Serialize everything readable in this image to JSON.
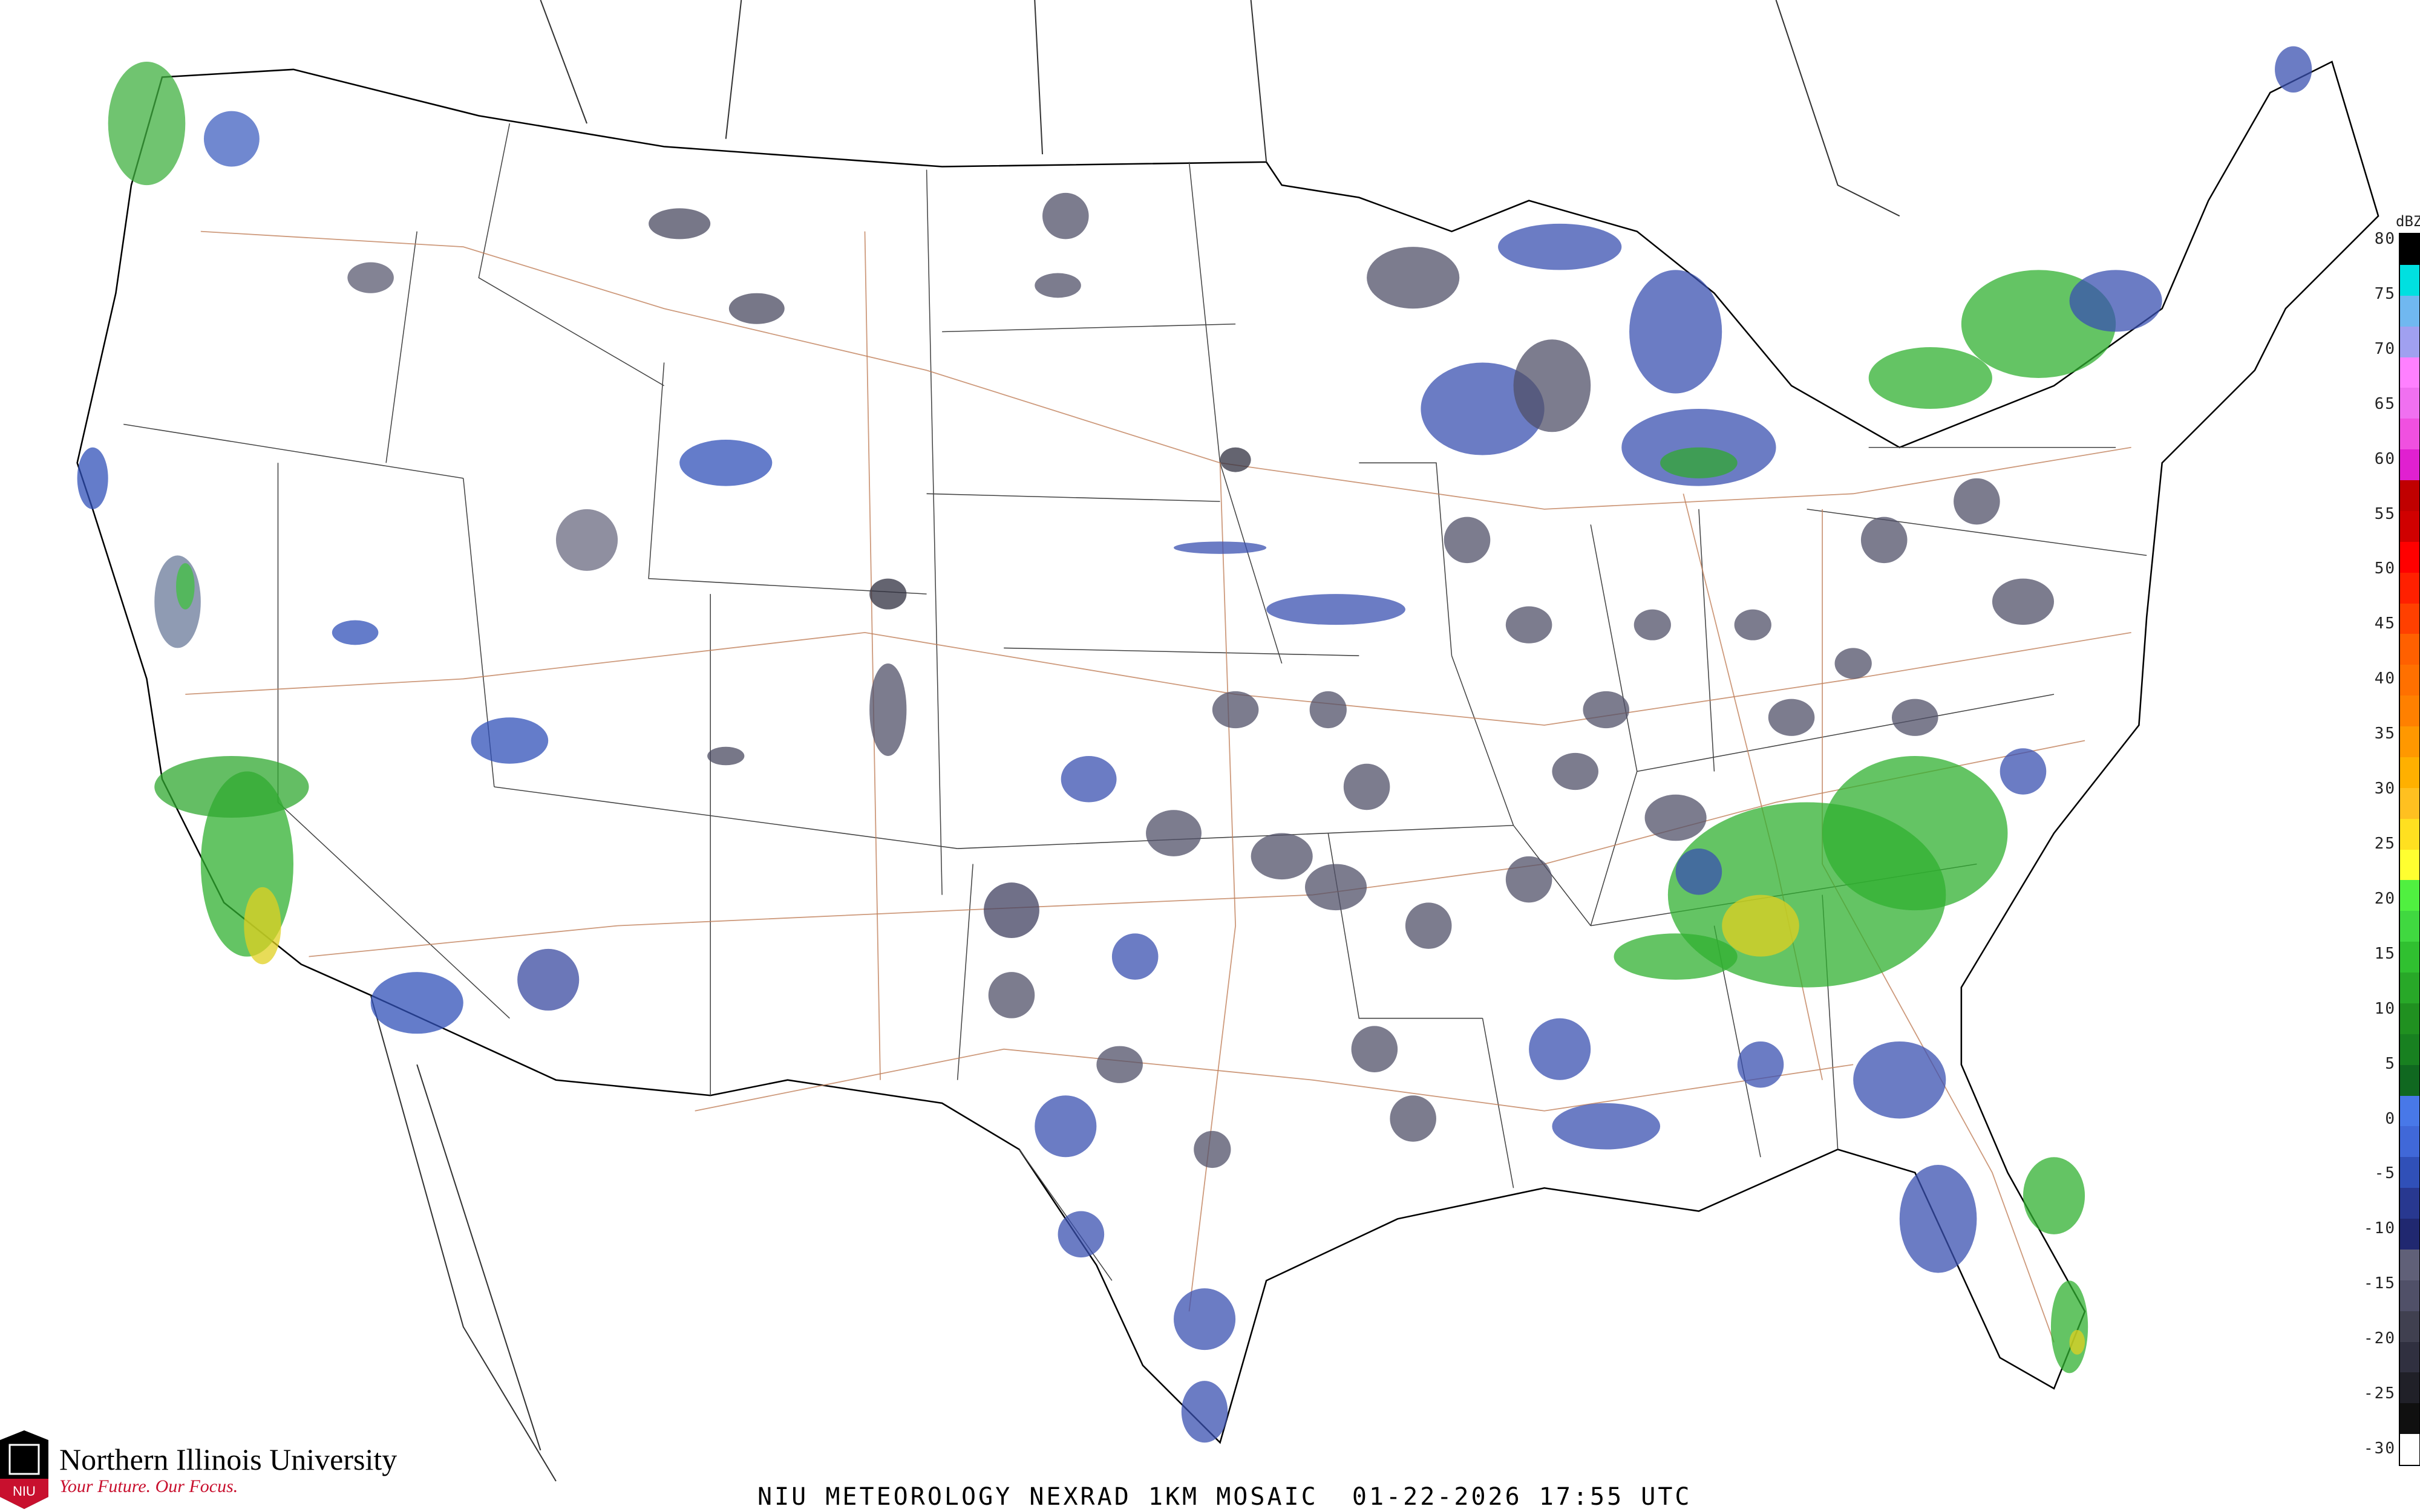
{
  "caption": "NIU METEOROLOGY NEXRAD 1KM MOSAIC  01-22-2026 17:55 UTC",
  "logo": {
    "name": "Northern Illinois University",
    "tagline": "Your Future. Our Focus.",
    "mark": "NIU",
    "brand_color": "#c8102e"
  },
  "colorbar": {
    "unit": "dBZ",
    "labels": [
      "80",
      "75",
      "70",
      "65",
      "60",
      "55",
      "50",
      "45",
      "40",
      "35",
      "30",
      "25",
      "20",
      "15",
      "10",
      "5",
      "0",
      "-5",
      "-10",
      "-15",
      "-20",
      "-25",
      "-30"
    ],
    "colors": [
      "#000000",
      "#00e0e0",
      "#70b8f0",
      "#a0a0f0",
      "#ff80ff",
      "#f070f0",
      "#f050e0",
      "#e020d0",
      "#c00000",
      "#d00000",
      "#ff0000",
      "#ff2000",
      "#ff4000",
      "#ff6000",
      "#ff7000",
      "#ff8000",
      "#ff9800",
      "#ffb000",
      "#ffc020",
      "#ffe020",
      "#ffff30",
      "#50f040",
      "#40d840",
      "#30c030",
      "#28a828",
      "#209020",
      "#188020",
      "#106820",
      "#4878e8",
      "#4068d8",
      "#3050b8",
      "#283890",
      "#202870",
      "#606078",
      "#505068",
      "#404050",
      "#303040",
      "#202028",
      "#101010",
      "#ffffff"
    ]
  },
  "map": {
    "land_color": "#ffffff",
    "border_color": "#000000",
    "county_color": "#c8c8d0",
    "highway_color": "#c0805a"
  }
}
